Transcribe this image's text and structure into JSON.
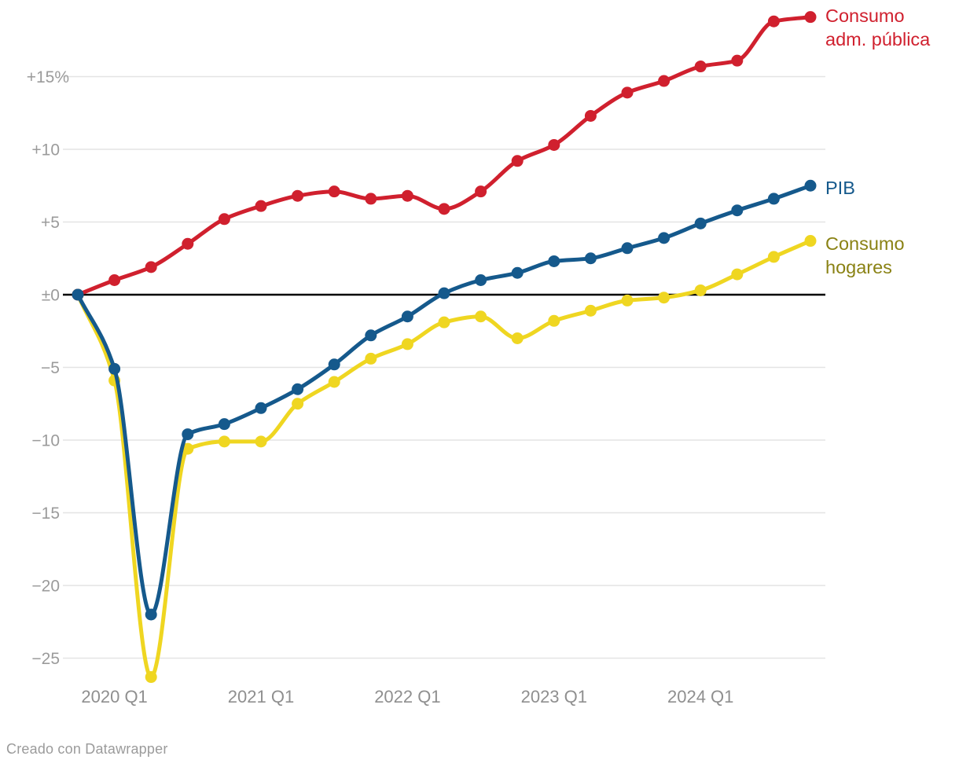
{
  "chart_data": {
    "type": "line",
    "title": "",
    "xlabel": "",
    "ylabel": "",
    "unit": "%",
    "grid": true,
    "legend_position": "right-of-line-ends",
    "baseline_value": 0,
    "ylim": [
      -27.8,
      20.6
    ],
    "categories": [
      "2019 Q4",
      "2020 Q1",
      "2020 Q2",
      "2020 Q3",
      "2020 Q4",
      "2021 Q1",
      "2021 Q2",
      "2021 Q3",
      "2021 Q4",
      "2022 Q1",
      "2022 Q2",
      "2022 Q3",
      "2022 Q4",
      "2023 Q1",
      "2023 Q2",
      "2023 Q3",
      "2023 Q4",
      "2024 Q1",
      "2024 Q2",
      "2024 Q3",
      "2024 Q4"
    ],
    "x_axis": {
      "tick_indices": [
        1,
        5,
        9,
        13,
        17
      ],
      "tick_labels": [
        "2020 Q1",
        "2021 Q1",
        "2022 Q1",
        "2023 Q1",
        "2024 Q1"
      ],
      "label_color": "#8f8f8f"
    },
    "y_axis": {
      "ticks": [
        {
          "value": 15,
          "label": "+15%"
        },
        {
          "value": 10,
          "label": "+10"
        },
        {
          "value": 5,
          "label": "+5"
        },
        {
          "value": 0,
          "label": "±0"
        },
        {
          "value": -5,
          "label": "−5"
        },
        {
          "value": -10,
          "label": "−10"
        },
        {
          "value": -15,
          "label": "−15"
        },
        {
          "value": -20,
          "label": "−20"
        },
        {
          "value": -25,
          "label": "−25"
        }
      ],
      "label_color": "#9b9b9b",
      "gridline_color": "#e4e4e4",
      "zero_line_color": "#000000"
    },
    "series": [
      {
        "name": "Consumo adm. pública",
        "label_lines": [
          "Consumo",
          "adm. pública"
        ],
        "color": "#d0202e",
        "label_color": "#d0202e",
        "values": [
          0,
          1.0,
          1.9,
          3.5,
          5.2,
          6.1,
          6.8,
          7.1,
          6.6,
          6.8,
          5.9,
          7.1,
          9.2,
          10.3,
          12.3,
          13.9,
          14.7,
          15.7,
          16.1,
          18.8,
          19.1
        ]
      },
      {
        "name": "PIB",
        "label_lines": [
          "PIB"
        ],
        "color": "#15598c",
        "label_color": "#15598c",
        "values": [
          0,
          -5.1,
          -22.0,
          -9.6,
          -8.9,
          -7.8,
          -6.5,
          -4.8,
          -2.8,
          -1.5,
          0.1,
          1.0,
          1.5,
          2.3,
          2.5,
          3.2,
          3.9,
          4.9,
          5.8,
          6.6,
          7.5
        ]
      },
      {
        "name": "Consumo hogares",
        "label_lines": [
          "Consumo",
          "hogares"
        ],
        "color": "#efd621",
        "label_color": "#8a8214",
        "values": [
          0,
          -5.9,
          -26.3,
          -10.6,
          -10.1,
          -10.1,
          -7.5,
          -6.0,
          -4.4,
          -3.4,
          -1.9,
          -1.5,
          -3.0,
          -1.8,
          -1.1,
          -0.4,
          -0.2,
          0.3,
          1.4,
          2.6,
          3.7
        ]
      }
    ]
  },
  "footer": {
    "credit": "Creado con Datawrapper"
  }
}
